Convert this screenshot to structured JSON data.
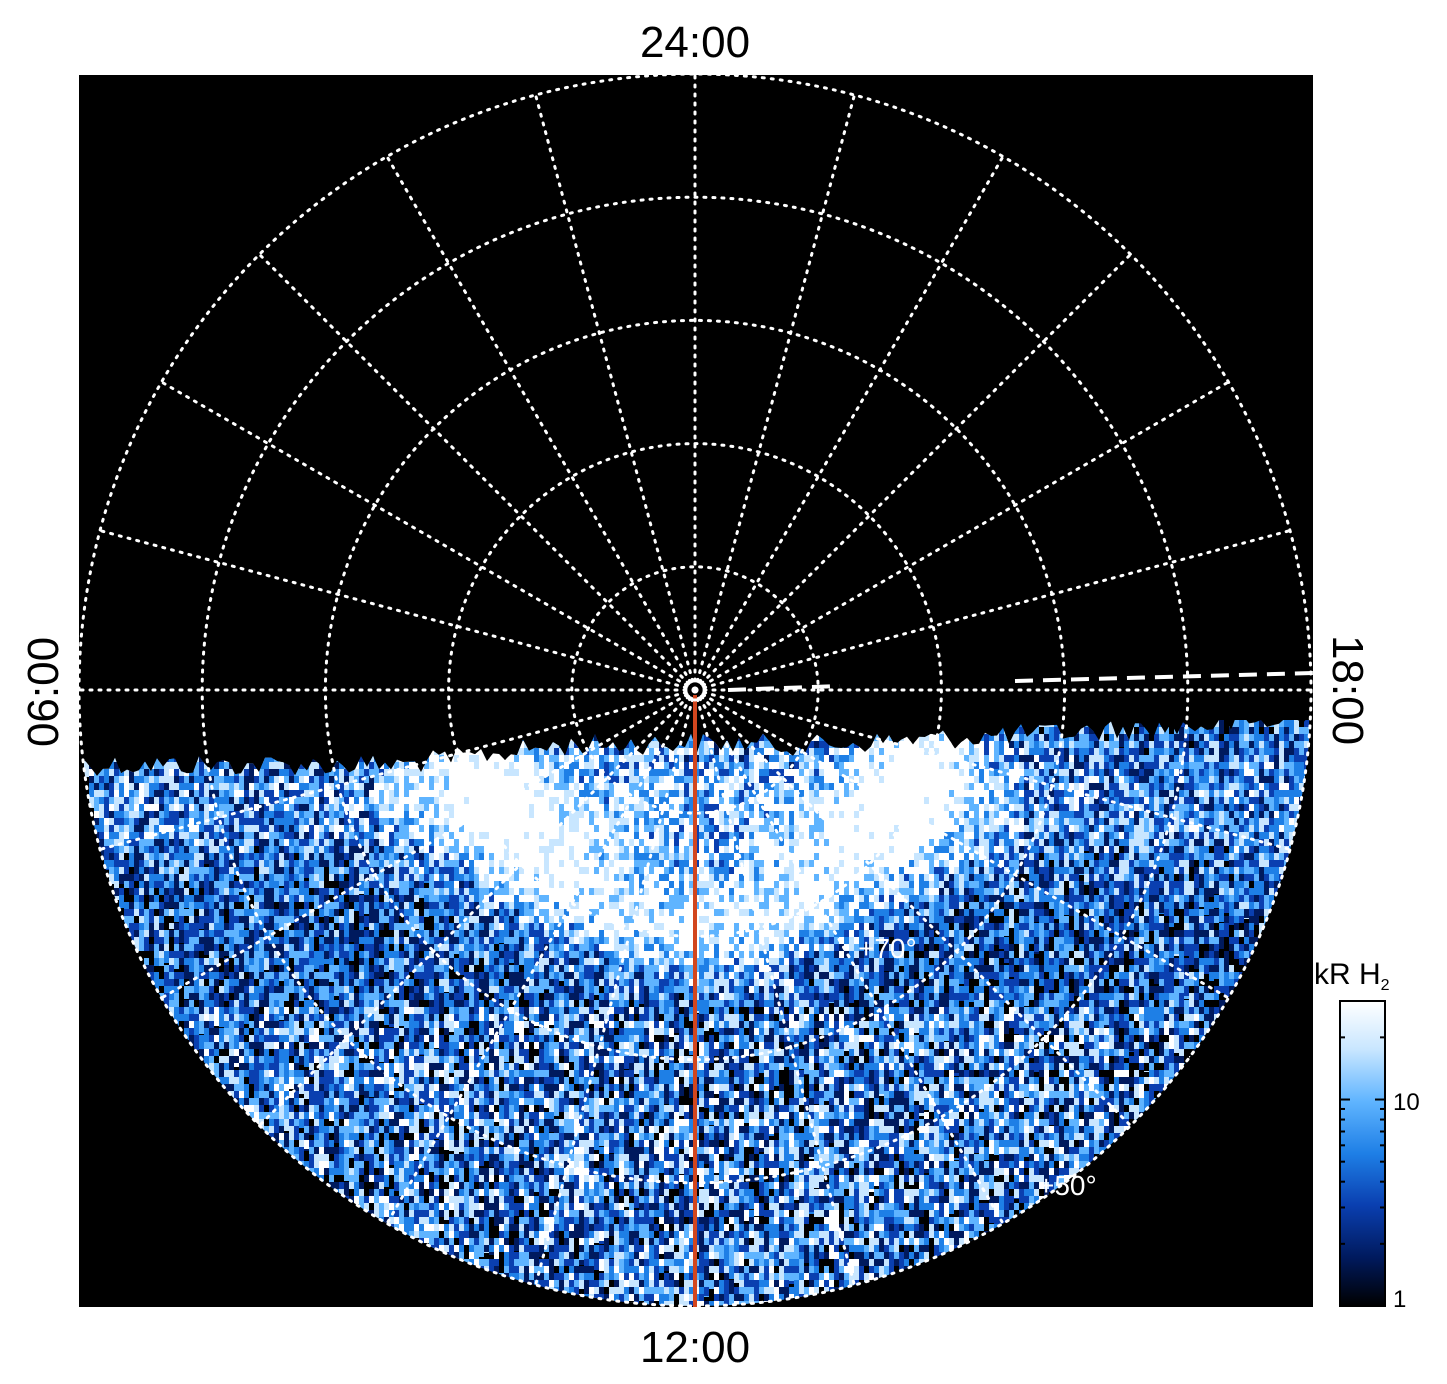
{
  "chart_data": {
    "type": "heatmap",
    "projection": "polar",
    "local_time_labels": {
      "top": "24:00",
      "bottom": "12:00",
      "left": "06:00",
      "right": "18:00"
    },
    "latitude_labels": [
      "+70°",
      "+50°"
    ],
    "latitude_grid_deg": [
      80,
      70,
      60,
      50,
      40
    ],
    "meridian_spacing_hours": 1,
    "grid": true,
    "colorbar": {
      "title": "kR H",
      "title_subscript": "2",
      "scale": "log",
      "range": [
        1,
        30
      ],
      "tick_labels": [
        "10",
        "1"
      ],
      "colormap": [
        "#000000",
        "#001a5e",
        "#0a3fb0",
        "#1e7fe6",
        "#5fb4ff",
        "#c8e6ff",
        "#ffffff"
      ]
    },
    "colors": {
      "background": "#000000",
      "grid": "#ffffff",
      "meridian_line": "#d2461e"
    },
    "data_coverage": "dayside only, from ~06:00 through 12:00 to 18:00 local time"
  }
}
